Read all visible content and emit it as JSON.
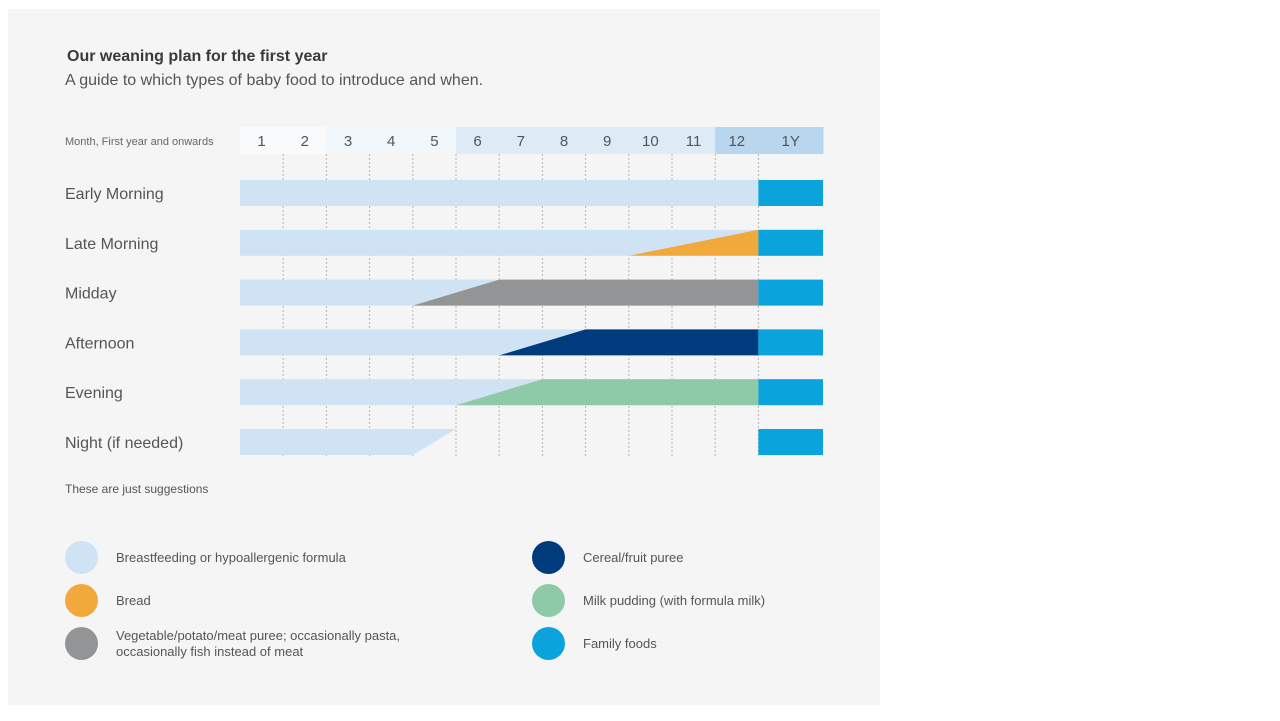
{
  "header": {
    "title": "Our weaning plan for the first year",
    "subtitle": "A guide to which types of baby food to introduce and when."
  },
  "colors": {
    "breastfeeding": "#cfe3f4",
    "bread": "#f2a93b",
    "vegetable": "#939496",
    "cereal": "#003b7e",
    "milk_pudding": "#8ecaa8",
    "family": "#0aa3dc",
    "header_cell_light": "#f2f7fb",
    "header_cell_mid": "#ddebf7",
    "header_cell_dark": "#b8d6ee"
  },
  "chart_data": {
    "type": "table",
    "axis_title": "Month, First year and onwards",
    "periods": [
      "1",
      "2",
      "3",
      "4",
      "5",
      "6",
      "7",
      "8",
      "9",
      "10",
      "11",
      "12",
      "1Y"
    ],
    "rows": [
      {
        "label": "Early Morning",
        "segments": [
          {
            "food": "breastfeeding",
            "start": 0,
            "end": 12
          },
          {
            "food": "family",
            "start": 12,
            "end": 13
          }
        ]
      },
      {
        "label": "Late Morning",
        "segments": [
          {
            "food": "breastfeeding",
            "start": 0,
            "end": 12
          },
          {
            "food": "bread",
            "ramp_start": 9,
            "ramp_end": 12,
            "end": 12
          },
          {
            "food": "family",
            "start": 12,
            "end": 13
          }
        ]
      },
      {
        "label": "Midday",
        "segments": [
          {
            "food": "breastfeeding",
            "start": 0,
            "end": 12
          },
          {
            "food": "vegetable",
            "ramp_start": 4,
            "ramp_end": 6,
            "end": 12
          },
          {
            "food": "family",
            "start": 12,
            "end": 13
          }
        ]
      },
      {
        "label": "Afternoon",
        "segments": [
          {
            "food": "breastfeeding",
            "start": 0,
            "end": 12
          },
          {
            "food": "cereal",
            "ramp_start": 6,
            "ramp_end": 8,
            "end": 12
          },
          {
            "food": "family",
            "start": 12,
            "end": 13
          }
        ]
      },
      {
        "label": "Evening",
        "segments": [
          {
            "food": "breastfeeding",
            "start": 0,
            "end": 12
          },
          {
            "food": "milk_pudding",
            "ramp_start": 5,
            "ramp_end": 7,
            "end": 12
          },
          {
            "food": "family",
            "start": 12,
            "end": 13
          }
        ]
      },
      {
        "label": "Night (if needed)",
        "segments": [
          {
            "food": "breastfeeding_taper",
            "start": 0,
            "taper_start": 4,
            "taper_end": 5
          },
          {
            "food": "family",
            "start": 12,
            "end": 13
          }
        ]
      }
    ]
  },
  "note": "These are just suggestions",
  "legend": [
    {
      "food": "breastfeeding",
      "label": "Breastfeeding or hypoallergenic formula"
    },
    {
      "food": "bread",
      "label": "Bread"
    },
    {
      "food": "vegetable",
      "label": "Vegetable/potato/meat puree; occasionally pasta,\noccasionally fish instead of meat"
    },
    {
      "food": "cereal",
      "label": "Cereal/fruit puree"
    },
    {
      "food": "milk_pudding",
      "label": "Milk pudding (with formula milk)"
    },
    {
      "food": "family",
      "label": "Family foods"
    }
  ]
}
